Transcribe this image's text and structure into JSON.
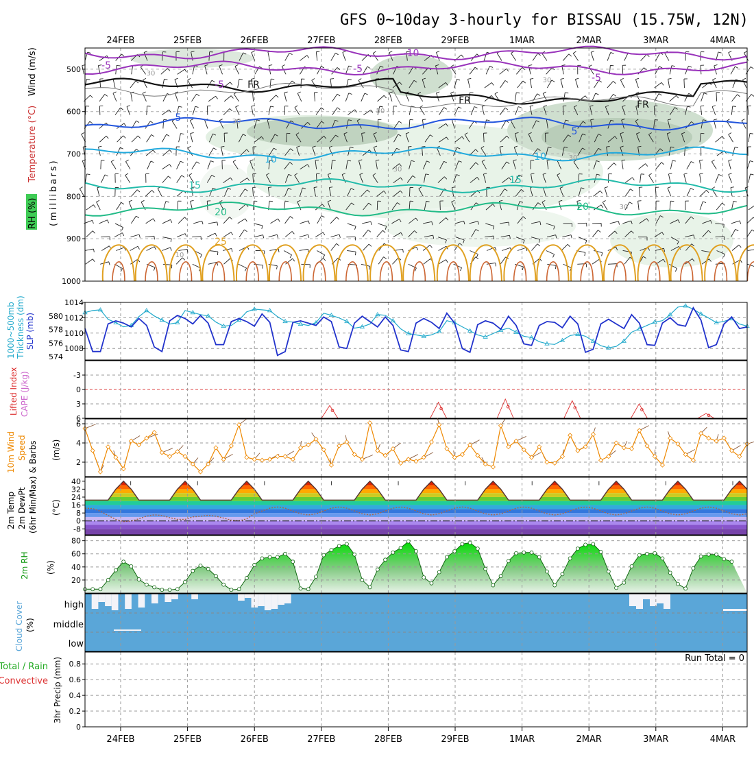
{
  "title": "GFS 0~10day 3-hourly for BISSAU (15.75W, 12N)",
  "dates": [
    "24FEB",
    "25FEB",
    "26FEB",
    "27FEB",
    "28FEB",
    "29FEB",
    "1MAR",
    "2MAR",
    "3MAR",
    "4MAR"
  ],
  "colors": {
    "rh": "#1fc13b",
    "temp": "#cc3333",
    "wind": "#222222",
    "slp": "#2233cc",
    "thick": "#22aacc",
    "li": "#dd3333",
    "cape": "#cc66cc",
    "wind10": "#ee8800",
    "dew": "#996633",
    "rh2m": "#119911",
    "cloud": "#5aa6d8",
    "precip": "#22aa22"
  },
  "labels": {
    "upper": {
      "rh": "RH (%)",
      "temp": "Temperature (°C)",
      "wind": "Wind (m/s)",
      "pressure": "(millibars)",
      "isotherms": [
        "-10",
        "-5",
        "-5",
        "-5",
        "-5",
        "FR",
        "FR",
        "FR",
        "5",
        "5",
        "10",
        "10",
        "15",
        "15",
        "20",
        "20",
        "25"
      ],
      "rh_contours": [
        "30",
        "30",
        "50",
        "30",
        "30",
        "10",
        "30",
        "30"
      ]
    },
    "slp": {
      "thick1": "1000~500mb",
      "thick2": "Thickness (dm)",
      "slp": "SLP (mb)"
    },
    "li": {
      "li": "Lifted Index",
      "cape": "CAPE (J/kg)"
    },
    "wind10": {
      "l1": "10m Wind",
      "l2": "Speed",
      "l3": "& Barbs",
      "unit": "(m/s)"
    },
    "temp2m": {
      "l1": "2m Temp",
      "l2": "2m DewPt",
      "l3": "(6hr Min/Max)",
      "unit": "(°C)"
    },
    "rh2m": {
      "l1": "2m RH",
      "unit": "(%)"
    },
    "cloud": {
      "l1": "Cloud Cover",
      "unit": "(%)",
      "high": "high",
      "middle": "middle",
      "low": "low"
    },
    "precip": {
      "l1": "Total / Rain",
      "l2": "Convective",
      "l3": "3hr Precip (mm)",
      "run_total": "Run Total = 0"
    }
  },
  "chart_data": [
    {
      "type": "heatmap",
      "name": "upper-air cross-section",
      "y_ticks": [
        500,
        600,
        700,
        800,
        900,
        1000
      ],
      "ylim": [
        450,
        1000
      ],
      "isotherms_C": [
        -10,
        -5,
        0,
        5,
        10,
        15,
        20,
        25
      ]
    },
    {
      "type": "line",
      "name": "SLP and 1000-500mb thickness",
      "slp_ticks": [
        1008,
        1010,
        1012,
        1014
      ],
      "slp_ylim": [
        1006.5,
        1014
      ],
      "thick_ticks": [
        574,
        576,
        578,
        580
      ],
      "slp_mb": [
        1010.6,
        1007.6,
        1007.6,
        1011.2,
        1011.6,
        1011.3,
        1010.8,
        1011.9,
        1011.0,
        1008.2,
        1007.6,
        1011.6,
        1012.3,
        1011.9,
        1011.2,
        1012.3,
        1011.3,
        1008.5,
        1008.5,
        1011.5,
        1011.9,
        1011.5,
        1010.9,
        1012.5,
        1011.4,
        1007.1,
        1007.6,
        1011.4,
        1011.6,
        1011.3,
        1011.0,
        1012.1,
        1011.5,
        1008.2,
        1008.0,
        1011.3,
        1012.2,
        1011.5,
        1010.8,
        1012.1,
        1011.0,
        1007.8,
        1007.6,
        1011.3,
        1011.9,
        1011.4,
        1010.6,
        1012.6,
        1011.3,
        1008.0,
        1007.5,
        1011.1,
        1011.6,
        1011.3,
        1010.5,
        1012.2,
        1011.0,
        1008.6,
        1008.4,
        1011.0,
        1011.5,
        1011.4,
        1010.7,
        1012.2,
        1011.2,
        1007.5,
        1007.9,
        1011.2,
        1011.8,
        1011.2,
        1010.6,
        1012.4,
        1011.3,
        1008.5,
        1008.4,
        1011.3,
        1012.0,
        1011.1,
        1010.9,
        1013.3,
        1011.7,
        1008.1,
        1008.5,
        1011.2,
        1012.1,
        1010.6,
        1010.8
      ],
      "thick_dm": [
        580.5,
        580.8,
        580.9,
        579.5,
        579.0,
        578.4,
        578.6,
        579.9,
        580.8,
        580.0,
        579.4,
        578.8,
        579.0,
        580.8,
        580.5,
        580.2,
        580.0,
        579.1,
        578.5,
        578.6,
        579.4,
        580.6,
        581.0,
        580.9,
        580.8,
        579.9,
        579.2,
        579.1,
        578.8,
        578.6,
        579.0,
        580.4,
        580.1,
        579.7,
        579.2,
        578.2,
        578.4,
        578.8,
        580.2,
        580.1,
        579.3,
        578.1,
        577.4,
        577.2,
        577.0,
        577.2,
        577.7,
        579.3,
        579.0,
        578.4,
        577.8,
        577.2,
        576.9,
        577.4,
        577.9,
        578.2,
        577.6,
        577.0,
        576.8,
        576.2,
        575.9,
        575.8,
        576.4,
        577.1,
        577.3,
        577.0,
        576.3,
        575.6,
        575.3,
        575.5,
        576.3,
        577.6,
        578.1,
        578.6,
        579.1,
        579.3,
        580.2,
        581.3,
        581.5,
        581.0,
        580.3,
        579.7,
        579.0,
        579.2,
        579.6,
        578.8,
        578.5
      ]
    },
    {
      "type": "line",
      "name": "Lifted index and CAPE",
      "li_ticks": [
        "-3",
        "0",
        "3",
        "6"
      ],
      "ylim": [
        -6,
        6
      ],
      "cape_bumps": [
        {
          "day": "28FEB",
          "hour": 3,
          "value": 80
        },
        {
          "day": "29FEB",
          "hour": 18,
          "value": 100
        },
        {
          "day": "1MAR",
          "hour": 18,
          "value": 120
        },
        {
          "day": "2MAR",
          "hour": 18,
          "value": 110
        },
        {
          "day": "3MAR",
          "hour": 18,
          "value": 90
        },
        {
          "day": "4MAR",
          "hour": 18,
          "value": 30
        }
      ]
    },
    {
      "type": "line",
      "name": "10m wind speed",
      "y_ticks": [
        2,
        4,
        6
      ],
      "ylim": [
        0.5,
        6.5
      ],
      "speed_ms": [
        5.5,
        3.2,
        1.0,
        3.6,
        2.5,
        1.3,
        4.2,
        3.8,
        4.5,
        5.1,
        3.0,
        2.6,
        3.1,
        2.6,
        1.8,
        1.0,
        1.8,
        3.5,
        2.3,
        3.7,
        5.9,
        2.5,
        2.3,
        2.2,
        2.3,
        2.6,
        2.6,
        2.3,
        3.5,
        3.8,
        4.4,
        3.3,
        1.7,
        3.7,
        4.1,
        2.8,
        2.3,
        6.1,
        3.2,
        2.7,
        3.4,
        1.9,
        2.3,
        2.1,
        2.5,
        4.1,
        5.9,
        3.4,
        2.5,
        2.8,
        3.8,
        2.7,
        1.8,
        1.5,
        5.8,
        3.6,
        4.2,
        3.3,
        2.5,
        3.6,
        2.0,
        1.9,
        2.6,
        4.8,
        3.2,
        3.6,
        4.9,
        2.2,
        2.6,
        4.0,
        3.5,
        3.4,
        5.3,
        3.7,
        2.6,
        1.7,
        4.5,
        3.9,
        2.8,
        2.2,
        5.0,
        4.5,
        4.2,
        4.5,
        3.2,
        2.6,
        3.9
      ]
    },
    {
      "type": "area",
      "name": "2m temperature and dewpoint",
      "y_ticks": [
        -8,
        0,
        8,
        16,
        24,
        32,
        40
      ],
      "ylim": [
        -14,
        44
      ],
      "days": 10,
      "temp_max_C": 40,
      "temp_min_C": 21,
      "dew_range_C": [
        -5,
        14
      ]
    },
    {
      "type": "area",
      "name": "2m relative humidity",
      "y_ticks": [
        20,
        40,
        60,
        80
      ],
      "ylim": [
        0,
        88
      ],
      "rh_pct": [
        6,
        6,
        6,
        20,
        35,
        48,
        41,
        21,
        13,
        9,
        5,
        5,
        6,
        17,
        34,
        42,
        37,
        26,
        13,
        5,
        6,
        23,
        43,
        53,
        55,
        55,
        60,
        48,
        7,
        6,
        25,
        58,
        66,
        72,
        75,
        59,
        20,
        9,
        36,
        51,
        62,
        69,
        79,
        64,
        24,
        15,
        32,
        55,
        64,
        75,
        77,
        68,
        37,
        12,
        26,
        49,
        61,
        62,
        62,
        55,
        33,
        12,
        29,
        53,
        68,
        74,
        75,
        63,
        33,
        8,
        16,
        41,
        58,
        60,
        61,
        53,
        31,
        14,
        7,
        38,
        56,
        59,
        59,
        52,
        48
      ]
    },
    {
      "type": "bar",
      "name": "cloud cover",
      "levels": [
        "high",
        "middle",
        "low"
      ]
    },
    {
      "type": "bar",
      "name": "3hr precipitation",
      "y_ticks": [
        "0",
        "0.2",
        "0.4",
        "0.6",
        "0.8"
      ],
      "ylim": [
        0,
        0.95
      ],
      "values_mm": []
    }
  ]
}
